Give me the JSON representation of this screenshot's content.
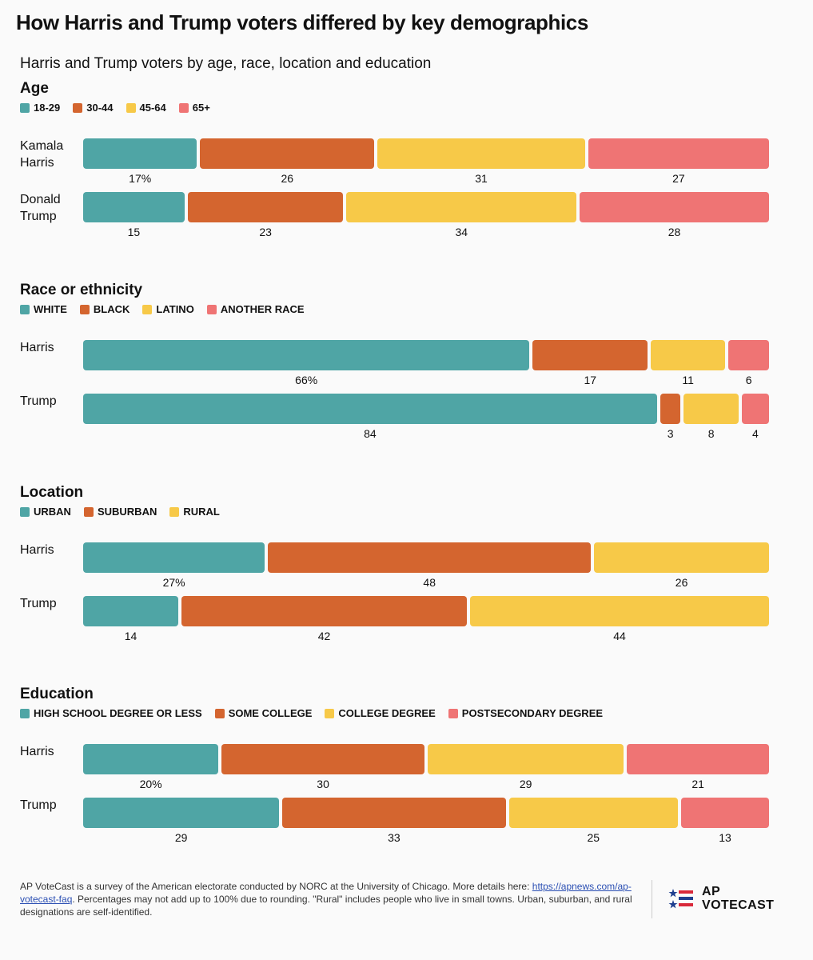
{
  "title": "How Harris and Trump voters differed by key demographics",
  "subtitle": "Harris and Trump voters by age, race, location and education",
  "colors": {
    "teal": "#4fa5a5",
    "orange": "#d4652f",
    "yellow": "#f7c948",
    "pink": "#ef7474"
  },
  "chart_data": [
    {
      "type": "bar",
      "stacked": true,
      "orientation": "horizontal",
      "title": "Age",
      "categories": [
        "Kamala Harris",
        "Donald Trump"
      ],
      "category_labels": [
        [
          "Kamala",
          "Harris"
        ],
        [
          "Donald",
          "Trump"
        ]
      ],
      "series": [
        {
          "name": "18-29",
          "color": "#4fa5a5",
          "values": [
            17,
            15
          ],
          "labels": [
            "17%",
            "15"
          ]
        },
        {
          "name": "30-44",
          "color": "#d4652f",
          "values": [
            26,
            23
          ],
          "labels": [
            "26",
            "23"
          ]
        },
        {
          "name": "45-64",
          "color": "#f7c948",
          "values": [
            31,
            34
          ],
          "labels": [
            "31",
            "34"
          ]
        },
        {
          "name": "65+",
          "color": "#ef7474",
          "values": [
            27,
            28
          ],
          "labels": [
            "27",
            "28"
          ]
        }
      ]
    },
    {
      "type": "bar",
      "stacked": true,
      "orientation": "horizontal",
      "title": "Race or ethnicity",
      "categories": [
        "Harris",
        "Trump"
      ],
      "category_labels": [
        [
          "Harris"
        ],
        [
          "Trump"
        ]
      ],
      "series": [
        {
          "name": "WHITE",
          "color": "#4fa5a5",
          "values": [
            66,
            84
          ],
          "labels": [
            "66%",
            "84"
          ]
        },
        {
          "name": "BLACK",
          "color": "#d4652f",
          "values": [
            17,
            3
          ],
          "labels": [
            "17",
            "3"
          ]
        },
        {
          "name": "LATINO",
          "color": "#f7c948",
          "values": [
            11,
            8
          ],
          "labels": [
            "11",
            "8"
          ]
        },
        {
          "name": "ANOTHER RACE",
          "color": "#ef7474",
          "values": [
            6,
            4
          ],
          "labels": [
            "6",
            "4"
          ]
        }
      ]
    },
    {
      "type": "bar",
      "stacked": true,
      "orientation": "horizontal",
      "title": "Location",
      "categories": [
        "Harris",
        "Trump"
      ],
      "category_labels": [
        [
          "Harris"
        ],
        [
          "Trump"
        ]
      ],
      "series": [
        {
          "name": "URBAN",
          "color": "#4fa5a5",
          "values": [
            27,
            14
          ],
          "labels": [
            "27%",
            "14"
          ]
        },
        {
          "name": "SUBURBAN",
          "color": "#d4652f",
          "values": [
            48,
            42
          ],
          "labels": [
            "48",
            "42"
          ]
        },
        {
          "name": "RURAL",
          "color": "#f7c948",
          "values": [
            26,
            44
          ],
          "labels": [
            "26",
            "44"
          ]
        }
      ]
    },
    {
      "type": "bar",
      "stacked": true,
      "orientation": "horizontal",
      "title": "Education",
      "categories": [
        "Harris",
        "Trump"
      ],
      "category_labels": [
        [
          "Harris"
        ],
        [
          "Trump"
        ]
      ],
      "series": [
        {
          "name": "HIGH SCHOOL DEGREE OR LESS",
          "color": "#4fa5a5",
          "values": [
            20,
            29
          ],
          "labels": [
            "20%",
            "29"
          ]
        },
        {
          "name": "SOME COLLEGE",
          "color": "#d4652f",
          "values": [
            30,
            33
          ],
          "labels": [
            "30",
            "33"
          ]
        },
        {
          "name": "COLLEGE DEGREE",
          "color": "#f7c948",
          "values": [
            29,
            25
          ],
          "labels": [
            "29",
            "25"
          ]
        },
        {
          "name": "POSTSECONDARY DEGREE",
          "color": "#ef7474",
          "values": [
            21,
            13
          ],
          "labels": [
            "21",
            "13"
          ]
        }
      ]
    }
  ],
  "footer": {
    "text_before": "AP VoteCast is a survey of the American electorate conducted by NORC at the University of Chicago. More details here: ",
    "link": "https://apnews.com/ap-votecast-faq",
    "text_after": ". Percentages may not add up to 100% due to rounding. \"Rural\" includes people who live in small towns. Urban, suburban, and rural designations are self-identified."
  },
  "logo": {
    "line1": "AP",
    "line2": "VOTECAST",
    "icon": "ap-votecast-stars-stripes-icon"
  }
}
